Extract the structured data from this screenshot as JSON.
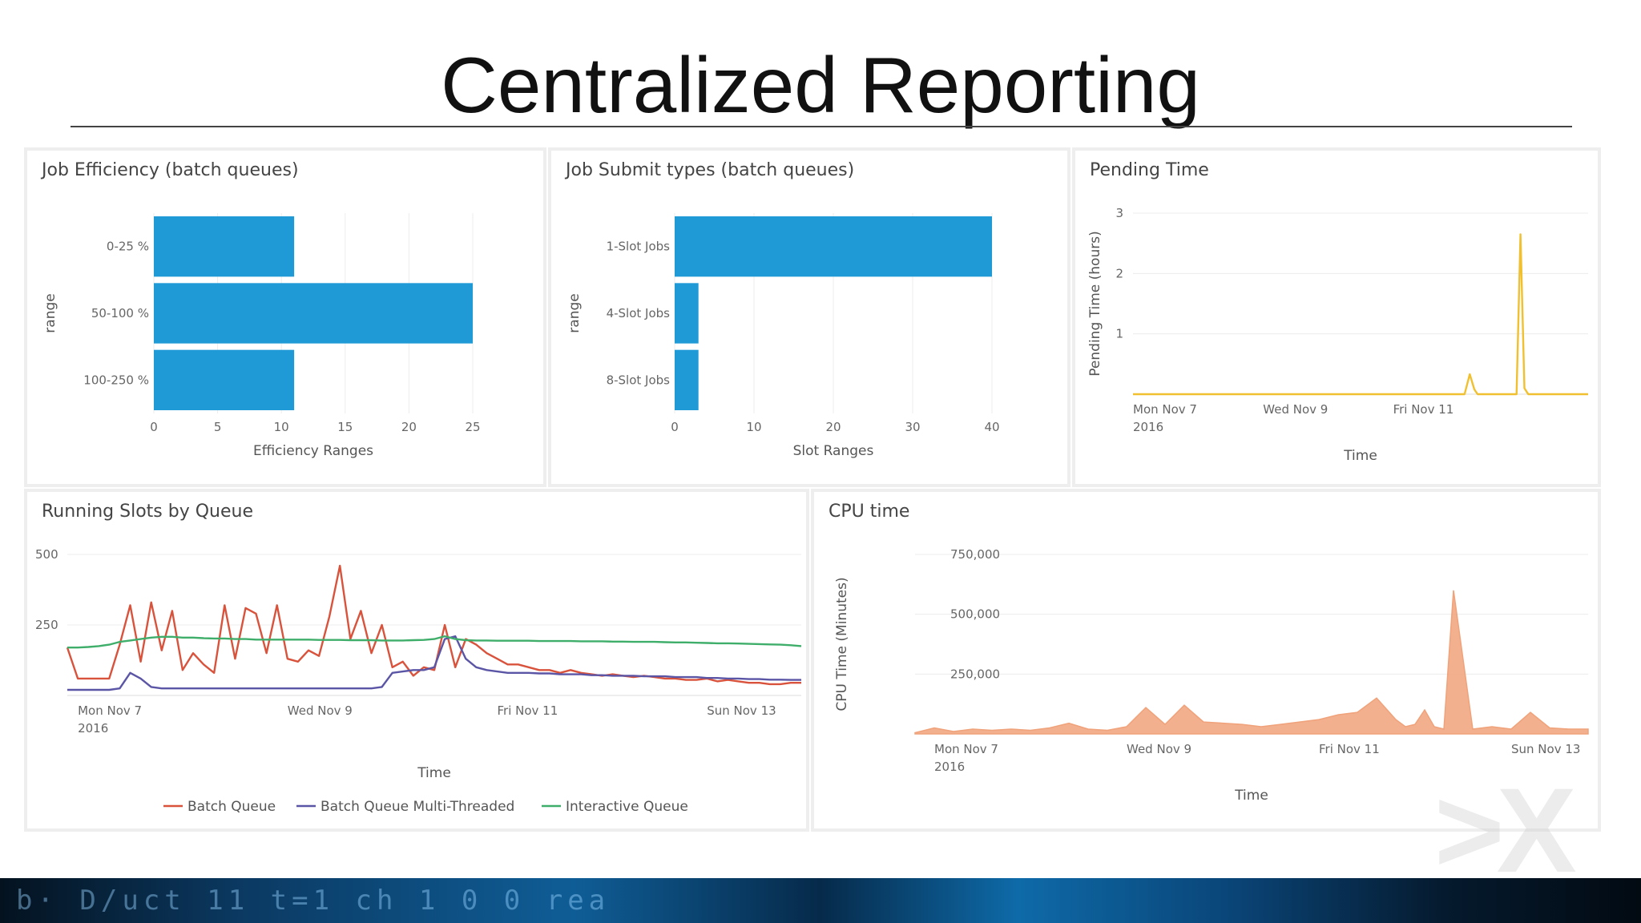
{
  "slide": {
    "title": "Centralized Reporting",
    "footer_glyphs": "b· D/uct 11   t=1 ch  1 0 0  rea"
  },
  "colors": {
    "bar": "#1f9ad6",
    "pending_line": "#f0c030",
    "cpu_fill": "#f0a27a",
    "batch_queue": "#d9533c",
    "batch_mt": "#5b55a6",
    "interactive": "#3fae6a",
    "grid": "#ececec"
  },
  "panels": {
    "job_efficiency": {
      "title": "Job Efficiency (batch queues)"
    },
    "job_submit": {
      "title": "Job Submit types (batch queues)"
    },
    "pending_time": {
      "title": "Pending Time"
    },
    "running_slots": {
      "title": "Running Slots by Queue"
    },
    "cpu_time": {
      "title": "CPU time"
    }
  },
  "chart_data": [
    {
      "id": "job_efficiency",
      "type": "bar",
      "orientation": "horizontal",
      "title": "Job Efficiency (batch queues)",
      "categories": [
        "0-25 %",
        "50-100 %",
        "100-250 %"
      ],
      "values": [
        11,
        25,
        11
      ],
      "xlabel": "Efficiency Ranges",
      "ylabel": "range",
      "xlim": [
        0,
        25
      ],
      "xticks": [
        "0",
        "5",
        "10",
        "15",
        "20",
        "25"
      ],
      "grid": true
    },
    {
      "id": "job_submit",
      "type": "bar",
      "orientation": "horizontal",
      "title": "Job Submit types (batch queues)",
      "categories": [
        "1-Slot Jobs",
        "4-Slot Jobs",
        "8-Slot Jobs"
      ],
      "values": [
        40,
        3,
        3
      ],
      "xlabel": "Slot Ranges",
      "ylabel": "range",
      "xlim": [
        0,
        40
      ],
      "xticks": [
        "0",
        "10",
        "20",
        "30",
        "40"
      ],
      "grid": true
    },
    {
      "id": "pending_time",
      "type": "line",
      "title": "Pending Time",
      "xlabel": "Time",
      "ylabel": "Pending Time (hours)",
      "ylim": [
        0,
        3
      ],
      "yticks": [
        "1",
        "2",
        "3"
      ],
      "xlim": [
        0,
        7
      ],
      "xticks": [
        {
          "x": 0,
          "label": [
            "Mon Nov 7",
            "2016"
          ]
        },
        {
          "x": 2,
          "label": [
            "Wed Nov 9"
          ]
        },
        {
          "x": 4,
          "label": [
            "Fri Nov 11"
          ]
        }
      ],
      "x": [
        0,
        5.1,
        5.18,
        5.25,
        5.3,
        5.9,
        5.96,
        6.02,
        6.08,
        7.0
      ],
      "series": [
        {
          "values": [
            0,
            0,
            0.33,
            0.08,
            0,
            0,
            2.65,
            0.1,
            0,
            0
          ]
        }
      ],
      "grid": true
    },
    {
      "id": "running_slots",
      "type": "line",
      "title": "Running Slots by Queue",
      "xlabel": "Time",
      "ylim": [
        0,
        500
      ],
      "yticks": [
        "250",
        "500"
      ],
      "xlim": [
        0,
        7
      ],
      "xticks": [
        {
          "x": 0.1,
          "label": [
            "Mon Nov 7",
            "2016"
          ]
        },
        {
          "x": 2.1,
          "label": [
            "Wed Nov 9"
          ]
        },
        {
          "x": 4.1,
          "label": [
            "Fri Nov 11"
          ]
        },
        {
          "x": 6.1,
          "label": [
            "Sun Nov 13"
          ]
        }
      ],
      "x": [
        0,
        0.1,
        0.2,
        0.3,
        0.4,
        0.5,
        0.6,
        0.7,
        0.8,
        0.9,
        1.0,
        1.1,
        1.2,
        1.3,
        1.4,
        1.5,
        1.6,
        1.7,
        1.8,
        1.9,
        2.0,
        2.1,
        2.2,
        2.3,
        2.4,
        2.5,
        2.6,
        2.7,
        2.8,
        2.9,
        3.0,
        3.1,
        3.2,
        3.3,
        3.4,
        3.5,
        3.6,
        3.7,
        3.8,
        3.9,
        4.0,
        4.1,
        4.2,
        4.3,
        4.4,
        4.5,
        4.6,
        4.7,
        4.8,
        4.9,
        5.0,
        5.1,
        5.2,
        5.3,
        5.4,
        5.5,
        5.6,
        5.7,
        5.8,
        5.9,
        6.0,
        6.1,
        6.2,
        6.3,
        6.4,
        6.5,
        6.6,
        6.7,
        6.8,
        6.9,
        7.0
      ],
      "series": [
        {
          "name": "Batch Queue",
          "values": [
            170,
            60,
            60,
            60,
            60,
            180,
            320,
            120,
            330,
            160,
            300,
            90,
            150,
            110,
            80,
            320,
            130,
            310,
            290,
            150,
            320,
            130,
            120,
            160,
            140,
            280,
            460,
            200,
            300,
            150,
            250,
            100,
            120,
            70,
            100,
            90,
            250,
            100,
            200,
            180,
            150,
            130,
            110,
            110,
            100,
            90,
            90,
            80,
            90,
            80,
            75,
            70,
            75,
            70,
            65,
            70,
            65,
            60,
            60,
            55,
            55,
            60,
            50,
            55,
            50,
            45,
            45,
            40,
            40,
            45,
            45
          ]
        },
        {
          "name": "Batch Queue Multi-Threaded",
          "values": [
            20,
            20,
            20,
            20,
            20,
            25,
            80,
            60,
            30,
            25,
            25,
            25,
            25,
            25,
            25,
            25,
            25,
            25,
            25,
            25,
            25,
            25,
            25,
            25,
            25,
            25,
            25,
            25,
            25,
            25,
            30,
            80,
            85,
            90,
            90,
            100,
            200,
            210,
            130,
            100,
            90,
            85,
            80,
            80,
            80,
            78,
            78,
            75,
            75,
            75,
            72,
            72,
            70,
            70,
            70,
            68,
            68,
            68,
            65,
            65,
            65,
            62,
            62,
            60,
            60,
            58,
            58,
            56,
            56,
            55,
            55
          ]
        },
        {
          "name": "Interactive Queue",
          "values": [
            170,
            170,
            172,
            175,
            180,
            190,
            195,
            200,
            205,
            208,
            208,
            205,
            205,
            203,
            202,
            202,
            200,
            200,
            198,
            198,
            198,
            198,
            198,
            198,
            197,
            197,
            197,
            196,
            196,
            196,
            195,
            195,
            195,
            196,
            197,
            200,
            210,
            200,
            196,
            195,
            195,
            194,
            194,
            194,
            194,
            193,
            193,
            193,
            193,
            192,
            192,
            192,
            191,
            191,
            190,
            190,
            190,
            189,
            188,
            188,
            187,
            186,
            185,
            185,
            184,
            183,
            182,
            181,
            180,
            178,
            175
          ]
        }
      ],
      "legend": {
        "position": "bottom"
      },
      "grid": true
    },
    {
      "id": "cpu_time",
      "type": "area",
      "title": "CPU time",
      "xlabel": "Time",
      "ylabel": "CPU Time (Minutes)",
      "ylim": [
        0,
        750000
      ],
      "yticks": [
        "250,000",
        "500,000",
        "750,000"
      ],
      "xlim": [
        0,
        7
      ],
      "xticks": [
        {
          "x": 0.2,
          "label": [
            "Mon Nov 7",
            "2016"
          ]
        },
        {
          "x": 2.2,
          "label": [
            "Wed Nov 9"
          ]
        },
        {
          "x": 4.2,
          "label": [
            "Fri Nov 11"
          ]
        },
        {
          "x": 6.2,
          "label": [
            "Sun Nov 13"
          ]
        }
      ],
      "x": [
        0,
        0.2,
        0.4,
        0.6,
        0.8,
        1.0,
        1.2,
        1.4,
        1.6,
        1.8,
        2.0,
        2.2,
        2.4,
        2.6,
        2.8,
        3.0,
        3.2,
        3.4,
        3.6,
        3.8,
        4.0,
        4.2,
        4.4,
        4.6,
        4.8,
        5.0,
        5.1,
        5.2,
        5.3,
        5.4,
        5.5,
        5.6,
        5.8,
        6.0,
        6.2,
        6.4,
        6.6,
        6.8,
        7.0
      ],
      "series": [
        {
          "values": [
            5000,
            25000,
            10000,
            20000,
            15000,
            20000,
            15000,
            25000,
            45000,
            20000,
            15000,
            30000,
            110000,
            40000,
            120000,
            50000,
            45000,
            40000,
            30000,
            40000,
            50000,
            60000,
            80000,
            90000,
            150000,
            60000,
            30000,
            40000,
            100000,
            30000,
            20000,
            600000,
            20000,
            30000,
            20000,
            90000,
            25000,
            20000,
            20000
          ]
        }
      ],
      "grid": true
    }
  ]
}
